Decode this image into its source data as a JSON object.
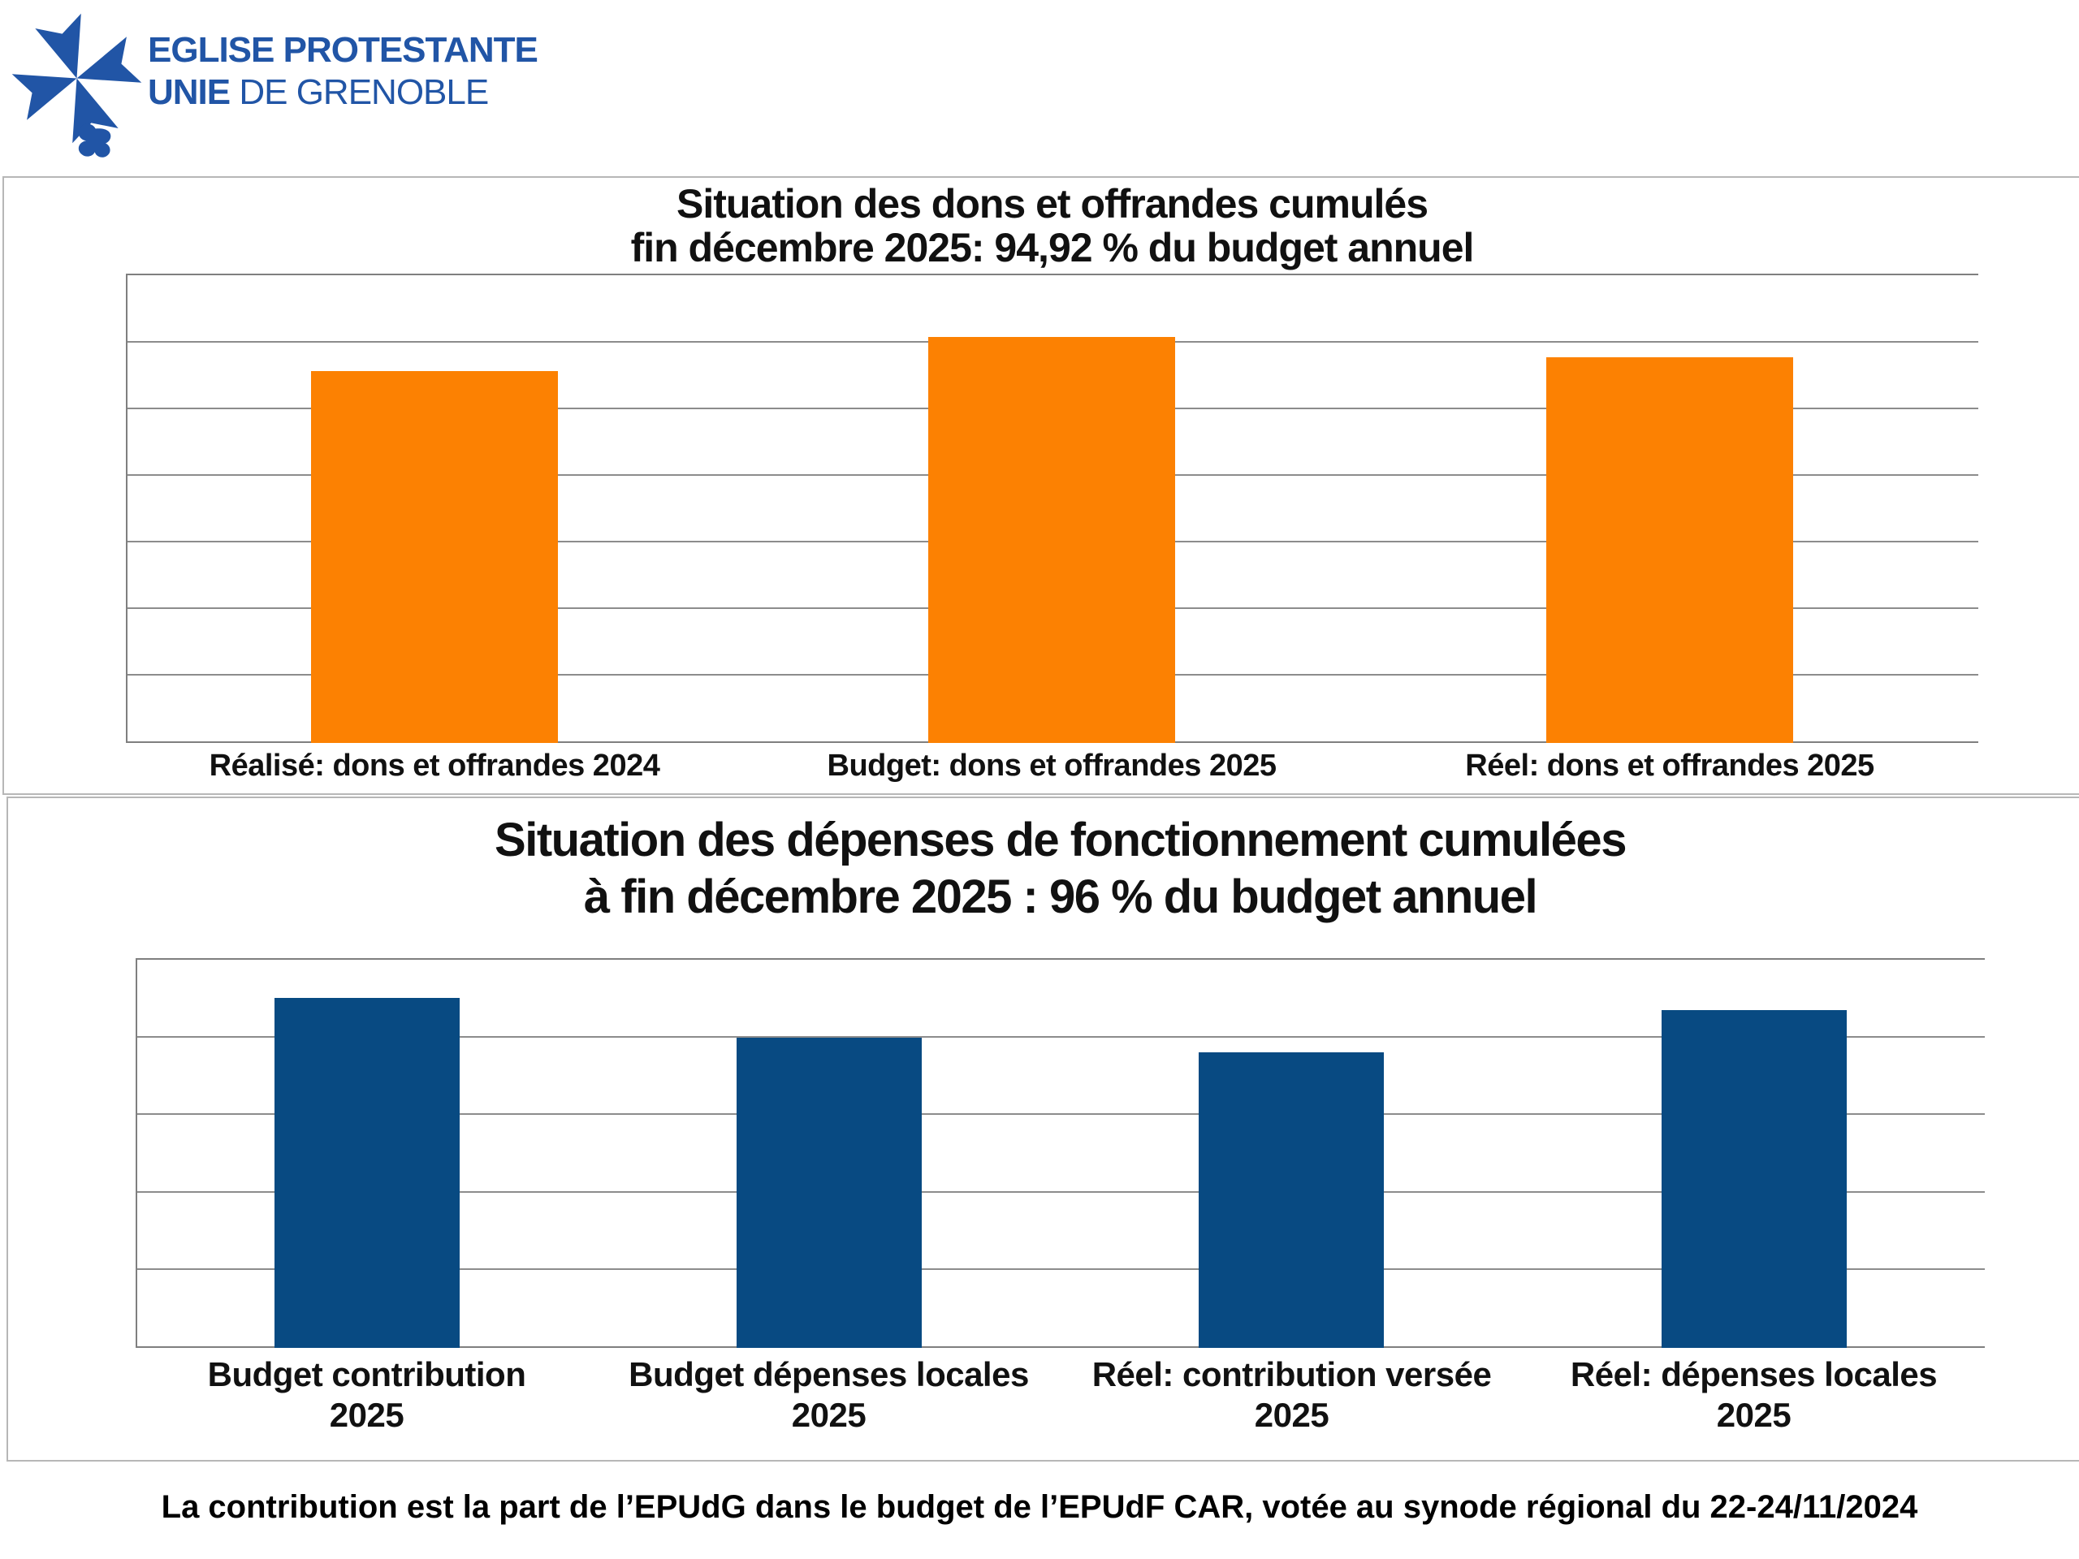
{
  "logo": {
    "org_line1": "EGLISE PROTESTANTE",
    "org_line2_bold": "UNIE",
    "org_line2_regular": " DE GRENOBLE",
    "brand_color": "#2155A6",
    "icon": "huguenot-cross-with-dove"
  },
  "chart_data": [
    {
      "type": "bar",
      "title": "Situation des dons et offrandes cumulés\nfin décembre 2025: 94,92 % du budget annuel",
      "categories": [
        "Réalisé: dons et offrandes 2024",
        "Budget: dons et offrandes 2025",
        "Réel: dons et offrandes 2025"
      ],
      "values": [
        91.6,
        100,
        94.92
      ],
      "value_unit": "percent, relative to Budget dons et offrandes 2025 = 100",
      "highlight_figure": "94,92 %",
      "ylim": [
        0,
        115.6
      ],
      "y_gridline_divisions": 7,
      "bar_color": "#FC8102",
      "grid_on": true,
      "legend_position": "none",
      "xlabel": "",
      "ylabel": ""
    },
    {
      "type": "bar",
      "title": "Situation des dépenses de fonctionnement cumulées\nà fin décembre 2025 : 96 % du budget annuel",
      "categories": [
        "Budget contribution\n2025",
        "Budget dépenses locales\n2025",
        "Réel: contribution versée\n2025",
        "Réel: dépenses locales\n2025"
      ],
      "values": [
        100,
        88.6,
        84.5,
        96.5
      ],
      "value_unit": "percent, relative to Budget contribution 2025 = 100",
      "highlight_figure": "96 %",
      "ylim": [
        0,
        111.4
      ],
      "y_gridline_divisions": 5,
      "bar_color": "#084A82",
      "grid_on": true,
      "legend_position": "none",
      "xlabel": "",
      "ylabel": ""
    }
  ],
  "footer": {
    "note": "La contribution est la part de l’EPUdG dans le budget de l’EPUdF CAR, votée au synode régional du 22-24/11/2024"
  }
}
